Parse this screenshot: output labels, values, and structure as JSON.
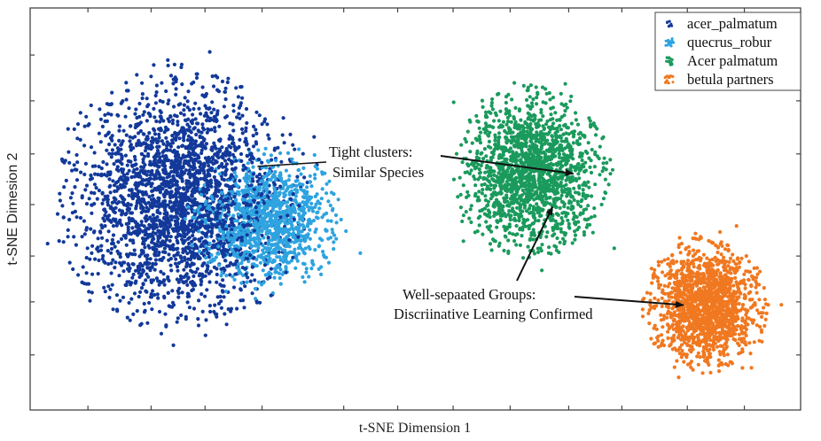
{
  "chart_data": {
    "type": "scatter",
    "title": "",
    "xlabel": "t-SNE Dimension 1",
    "ylabel": "t-SNE Dimesion 2",
    "xlim": [
      -50,
      50
    ],
    "ylim": [
      -50,
      50
    ],
    "grid": false,
    "legend_position": "top-right",
    "x_ticks": [
      -42.5,
      -34.3,
      -27.3,
      -19.9,
      -9.3,
      -2.3,
      4.9,
      12.3,
      19.9,
      26.8,
      35.3,
      42.7
    ],
    "y_ticks": [
      38.3,
      26.9,
      13.7,
      1.1,
      -11.7,
      -23.1,
      -36.3
    ],
    "series": [
      {
        "name": "acer_palmatum",
        "color": "#12399a",
        "center": [
          -30.3,
          2.4
        ],
        "std": [
          6.4,
          13.0
        ],
        "count": 2600
      },
      {
        "name": "quecrus_robur",
        "color": "#2ea3e0",
        "center": [
          -19.2,
          -3.0
        ],
        "std": [
          3.8,
          7.0
        ],
        "count": 1100
      },
      {
        "name": "Acer palmatum",
        "color": "#1a9a5c",
        "center": [
          15.1,
          9.0
        ],
        "std": [
          4.0,
          8.4
        ],
        "count": 1700
      },
      {
        "name": "betula partners",
        "color": "#f07820",
        "center": [
          37.6,
          -24.0
        ],
        "std": [
          3.2,
          6.6
        ],
        "count": 1500
      }
    ],
    "annotations": [
      {
        "lines": [
          "Tight clusters:",
          "Similar Species"
        ],
        "arrows_to": [
          [
            -20.5,
            10.6
          ],
          [
            20.5,
            8.8
          ]
        ]
      },
      {
        "lines": [
          "Well-sepaated Groups:",
          "Discriinative Learning Confirmed"
        ],
        "arrows_to": [
          [
            17.8,
            0.5
          ],
          [
            34.8,
            -23.9
          ]
        ]
      }
    ]
  }
}
